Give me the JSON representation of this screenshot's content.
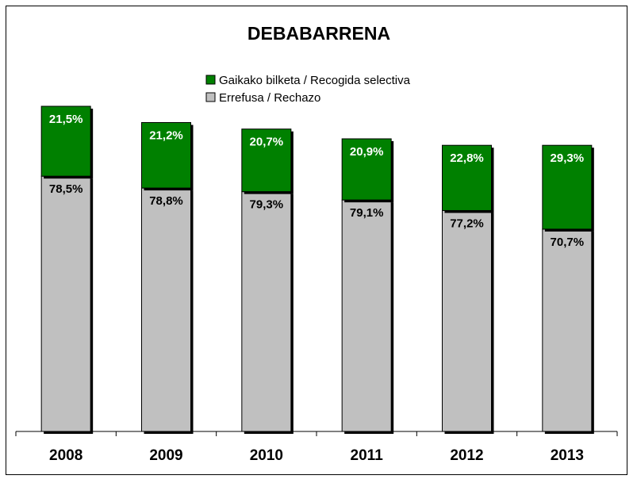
{
  "chart_data": {
    "type": "bar",
    "stacked": true,
    "title": "DEBABARRENA",
    "categories": [
      "2008",
      "2009",
      "2010",
      "2011",
      "2012",
      "2013"
    ],
    "series": [
      {
        "name": "Errefusa / Rechazo",
        "color": "#c0c0c0",
        "label_color": "#000000",
        "values": [
          78.5,
          78.8,
          79.3,
          79.1,
          77.2,
          70.7
        ],
        "labels": [
          "78,5%",
          "78,8%",
          "79,3%",
          "79,1%",
          "77,2%",
          "70,7%"
        ]
      },
      {
        "name": "Gaikako bilketa / Recogida selectiva",
        "color": "#008000",
        "label_color": "#ffffff",
        "values": [
          21.5,
          21.2,
          20.7,
          20.9,
          22.8,
          29.3
        ],
        "labels": [
          "21,5%",
          "21,2%",
          "20,7%",
          "20,9%",
          "22,8%",
          "29,3%"
        ]
      }
    ],
    "totals_tonnes_relative": [
      1.0,
      0.95,
      0.93,
      0.9,
      0.88,
      0.88
    ],
    "legend": [
      {
        "label": "Gaikako bilketa / Recogida selectiva",
        "color": "#008000"
      },
      {
        "label": "Errefusa / Rechazo",
        "color": "#c0c0c0"
      }
    ],
    "legend_position": "top",
    "xlabel": "",
    "ylabel": "",
    "grid": false
  }
}
